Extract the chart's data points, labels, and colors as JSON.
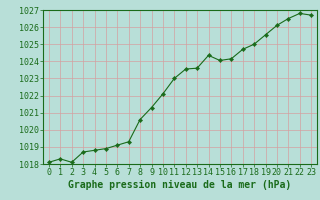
{
  "x": [
    0,
    1,
    2,
    3,
    4,
    5,
    6,
    7,
    8,
    9,
    10,
    11,
    12,
    13,
    14,
    15,
    16,
    17,
    18,
    19,
    20,
    21,
    22,
    23
  ],
  "y": [
    1018.1,
    1018.3,
    1018.1,
    1018.7,
    1018.8,
    1018.9,
    1019.1,
    1019.3,
    1020.6,
    1021.3,
    1022.1,
    1023.0,
    1023.55,
    1023.6,
    1024.35,
    1024.05,
    1024.15,
    1024.7,
    1025.0,
    1025.55,
    1026.1,
    1026.5,
    1026.8,
    1026.7
  ],
  "ylim": [
    1018,
    1027
  ],
  "xlim": [
    -0.5,
    23.5
  ],
  "yticks": [
    1018,
    1019,
    1020,
    1021,
    1022,
    1023,
    1024,
    1025,
    1026,
    1027
  ],
  "xticks": [
    0,
    1,
    2,
    3,
    4,
    5,
    6,
    7,
    8,
    9,
    10,
    11,
    12,
    13,
    14,
    15,
    16,
    17,
    18,
    19,
    20,
    21,
    22,
    23
  ],
  "line_color": "#1a6b1a",
  "marker": "D",
  "marker_size": 2.2,
  "bg_color": "#b8dfd8",
  "grid_color": "#d4a0a0",
  "xlabel": "Graphe pression niveau de la mer (hPa)",
  "xlabel_fontsize": 7,
  "tick_fontsize": 6,
  "fig_bg": "#b8dfd8",
  "spine_color": "#1a6b1a"
}
